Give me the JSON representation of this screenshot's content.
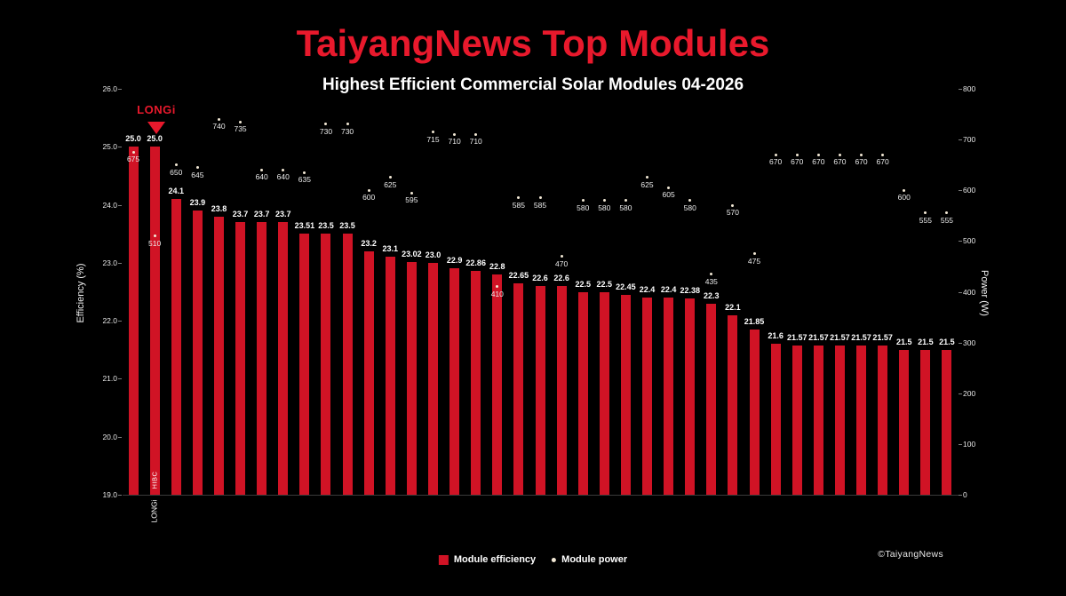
{
  "footer": {
    "copyright": "©TaiyangNews"
  },
  "annotation": {
    "text": "LONGi",
    "arrow": "down",
    "target_bar_index": 1
  },
  "colors": {
    "background": "#000000",
    "bar": "#d01325",
    "dot": "#f2e8d5",
    "title": "#e8192c",
    "text": "#ffffff"
  },
  "chart_data": {
    "type": "bar",
    "title": "TaiyangNews Top Modules",
    "subtitle": "Highest Efficient Commercial Solar Modules 04-2026",
    "ylabel_left": "Efficiency (%)",
    "ylabel_right": "Power (W)",
    "y_left_range": [
      19.0,
      26.0
    ],
    "y_right_range": [
      0,
      800
    ],
    "y_left_ticks": [
      "19.0",
      "20.0",
      "21.0",
      "22.0",
      "23.0",
      "24.0",
      "25.0",
      "26.0"
    ],
    "y_right_ticks": [
      "0",
      "100",
      "200",
      "300",
      "400",
      "500",
      "600",
      "700",
      "800"
    ],
    "grid": false,
    "legend_position": "bottom",
    "legend": [
      "Module efficiency",
      "Module power"
    ],
    "series": [
      {
        "name": "Module efficiency",
        "type": "bar",
        "axis": "left",
        "unit": "%"
      },
      {
        "name": "Module power",
        "type": "scatter",
        "axis": "right",
        "unit": "W"
      }
    ],
    "bars": [
      {
        "efficiency": 25.0,
        "efficiency_label": "25.0",
        "power": 675
      },
      {
        "efficiency": 25.0,
        "efficiency_label": "25.0",
        "power": 510,
        "x_label": "LONGi",
        "bar_label": "HIBC"
      },
      {
        "efficiency": 24.1,
        "efficiency_label": "24.1",
        "power": 650
      },
      {
        "efficiency": 23.9,
        "efficiency_label": "23.9",
        "power": 645
      },
      {
        "efficiency": 23.8,
        "efficiency_label": "23.8",
        "power": 740
      },
      {
        "efficiency": 23.7,
        "efficiency_label": "23.7",
        "power": 735
      },
      {
        "efficiency": 23.7,
        "efficiency_label": "23.7",
        "power": 640
      },
      {
        "efficiency": 23.7,
        "efficiency_label": "23.7",
        "power": 640
      },
      {
        "efficiency": 23.51,
        "efficiency_label": "23.51",
        "power": 635
      },
      {
        "efficiency": 23.5,
        "efficiency_label": "23.5",
        "power": 730
      },
      {
        "efficiency": 23.5,
        "efficiency_label": "23.5",
        "power": 730
      },
      {
        "efficiency": 23.2,
        "efficiency_label": "23.2",
        "power": 600
      },
      {
        "efficiency": 23.1,
        "efficiency_label": "23.1",
        "power": 625
      },
      {
        "efficiency": 23.02,
        "efficiency_label": "23.02",
        "power": 595
      },
      {
        "efficiency": 23.0,
        "efficiency_label": "23.0",
        "power": 715
      },
      {
        "efficiency": 22.9,
        "efficiency_label": "22.9",
        "power": 710
      },
      {
        "efficiency": 22.86,
        "efficiency_label": "22.86",
        "power": 710
      },
      {
        "efficiency": 22.8,
        "efficiency_label": "22.8",
        "power": 410
      },
      {
        "efficiency": 22.65,
        "efficiency_label": "22.65",
        "power": 585
      },
      {
        "efficiency": 22.6,
        "efficiency_label": "22.6",
        "power": 585
      },
      {
        "efficiency": 22.6,
        "efficiency_label": "22.6",
        "power": 470
      },
      {
        "efficiency": 22.5,
        "efficiency_label": "22.5",
        "power": 580
      },
      {
        "efficiency": 22.5,
        "efficiency_label": "22.5",
        "power": 580
      },
      {
        "efficiency": 22.45,
        "efficiency_label": "22.45",
        "power": 580
      },
      {
        "efficiency": 22.4,
        "efficiency_label": "22.4",
        "power": 625
      },
      {
        "efficiency": 22.4,
        "efficiency_label": "22.4",
        "power": 605
      },
      {
        "efficiency": 22.38,
        "efficiency_label": "22.38",
        "power": 580
      },
      {
        "efficiency": 22.3,
        "efficiency_label": "22.3",
        "power": 435
      },
      {
        "efficiency": 22.1,
        "efficiency_label": "22.1",
        "power": 570
      },
      {
        "efficiency": 21.85,
        "efficiency_label": "21.85",
        "power": 475
      },
      {
        "efficiency": 21.6,
        "efficiency_label": "21.6",
        "power": 670
      },
      {
        "efficiency": 21.57,
        "efficiency_label": "21.57",
        "power": 670
      },
      {
        "efficiency": 21.57,
        "efficiency_label": "21.57",
        "power": 670
      },
      {
        "efficiency": 21.57,
        "efficiency_label": "21.57",
        "power": 670
      },
      {
        "efficiency": 21.57,
        "efficiency_label": "21.57",
        "power": 670
      },
      {
        "efficiency": 21.57,
        "efficiency_label": "21.57",
        "power": 670
      },
      {
        "efficiency": 21.5,
        "efficiency_label": "21.5",
        "power": 600
      },
      {
        "efficiency": 21.5,
        "efficiency_label": "21.5",
        "power": 555
      },
      {
        "efficiency": 21.5,
        "efficiency_label": "21.5",
        "power": 555
      }
    ]
  }
}
